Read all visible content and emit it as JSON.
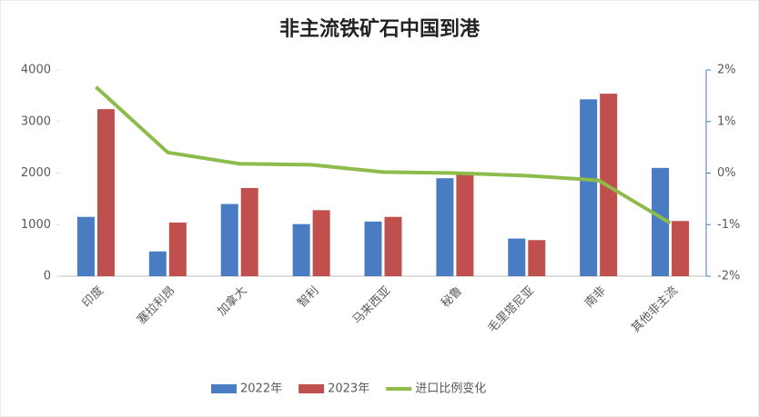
{
  "chart_data": {
    "type": "bar_line",
    "title": "非主流铁矿石中国到港",
    "categories": [
      "印度",
      "塞拉利昂",
      "加拿大",
      "智利",
      "马来西亚",
      "秘鲁",
      "毛里塔尼亚",
      "南非",
      "其他非主流"
    ],
    "series": [
      {
        "name": "2022年",
        "color": "#4a7cc3",
        "values": [
          1150,
          480,
          1400,
          1010,
          1060,
          1900,
          730,
          3430,
          2100
        ]
      },
      {
        "name": "2023年",
        "color": "#c0504d",
        "values": [
          3240,
          1040,
          1710,
          1280,
          1150,
          2020,
          700,
          3540,
          1070
        ]
      },
      {
        "name": "进口比例变化",
        "color": "#8dbb4c",
        "axis": "y2",
        "values": [
          1.67,
          0.4,
          0.18,
          0.16,
          0.02,
          0.0,
          -0.05,
          -0.14,
          -0.97
        ]
      }
    ],
    "ylim": [
      0,
      4000
    ],
    "yticks": [
      0,
      1000,
      2000,
      3000,
      4000
    ],
    "y2lim": [
      -2,
      2
    ],
    "y2ticks": [
      {
        "value": -2,
        "label": "-2%"
      },
      {
        "value": -1,
        "label": "-1%"
      },
      {
        "value": 0,
        "label": "0%"
      },
      {
        "value": 1,
        "label": "1%"
      },
      {
        "value": 2,
        "label": "2%"
      }
    ],
    "legend": "bottom"
  }
}
